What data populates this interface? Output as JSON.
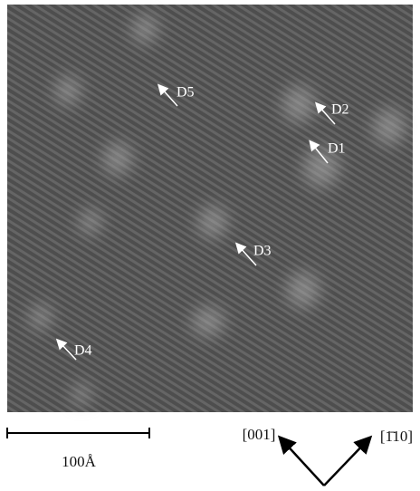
{
  "image": {
    "labels": [
      "D5",
      "D2",
      "D1",
      "D3",
      "D4"
    ]
  },
  "scale_bar": {
    "label": "100Å"
  },
  "directions": [
    "[001]",
    "[1̄10]"
  ]
}
